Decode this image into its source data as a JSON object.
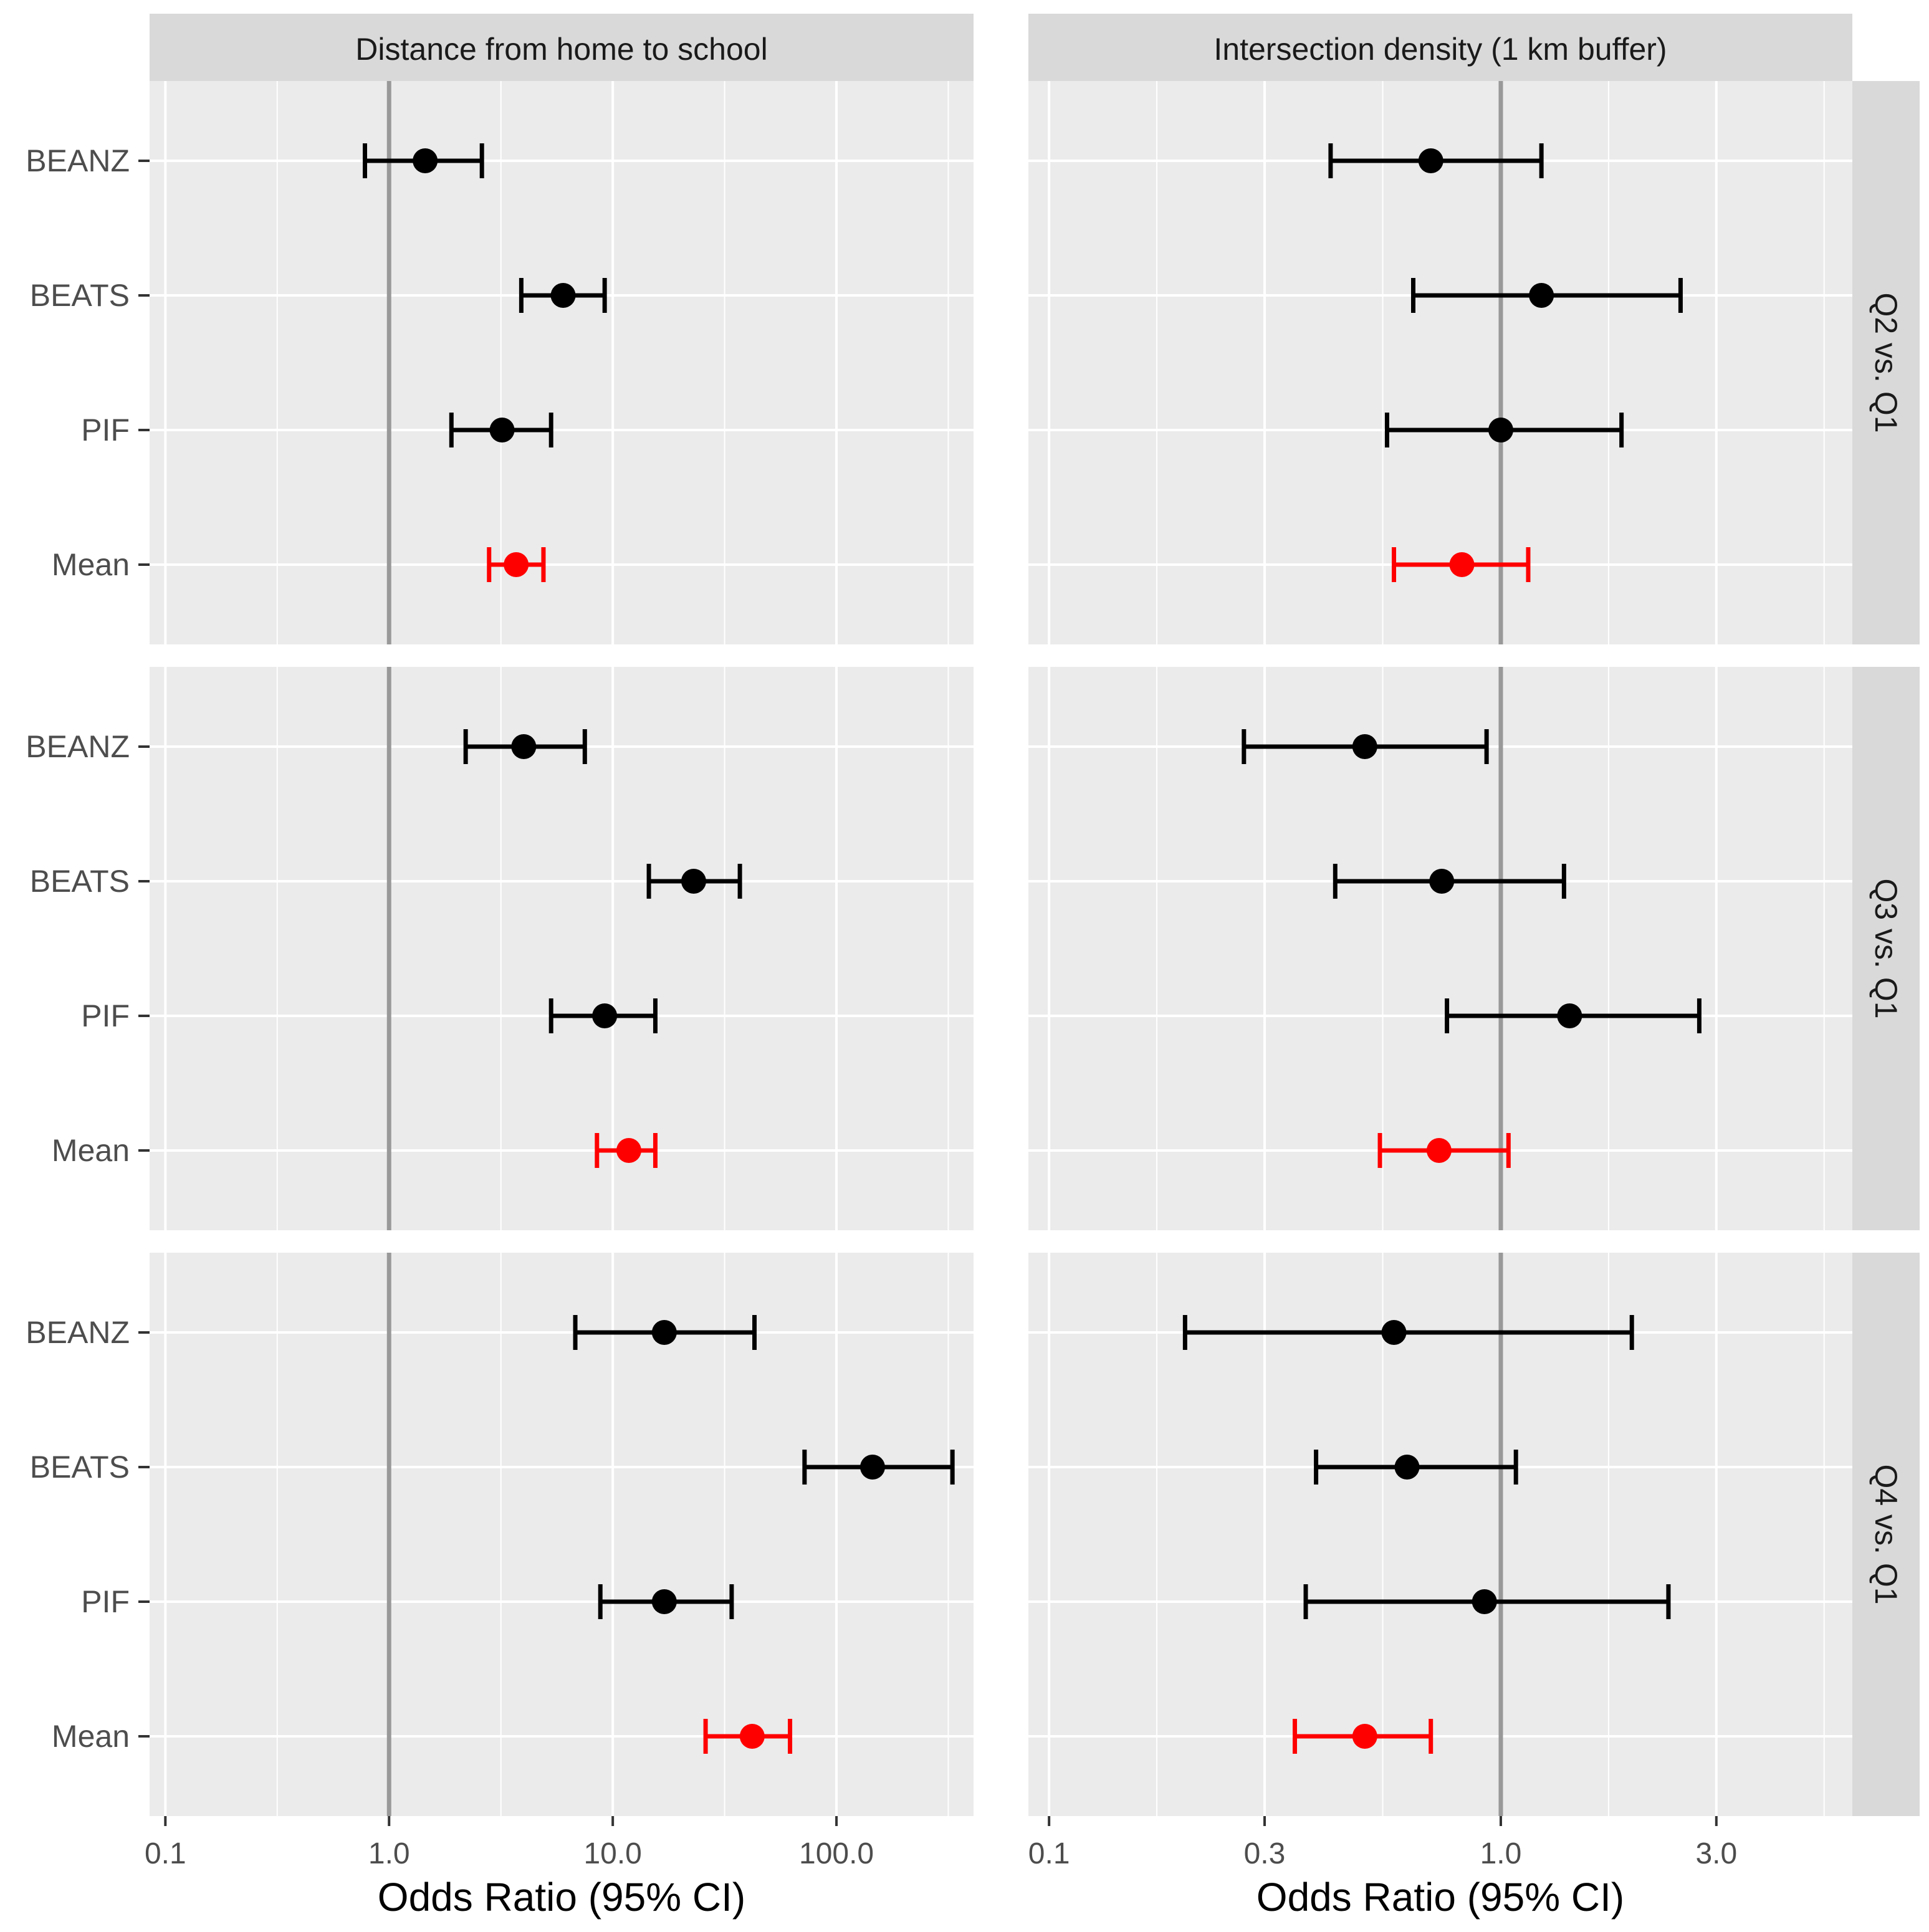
{
  "chart_data": {
    "type": "forest",
    "xlabel": "Odds Ratio (95% CI)",
    "scale": "log",
    "reference_line": 1.0,
    "colors": {
      "study": "#000000",
      "mean": "#ff0000",
      "panel_bg": "#ebebeb",
      "strip_bg": "#d9d9d9",
      "reference": "#999999"
    },
    "row_labels": [
      "BEANZ",
      "BEATS",
      "PIF",
      "Mean"
    ],
    "columns": [
      {
        "title": "Distance from home to school",
        "xlim": [
          0.085,
          410
        ],
        "ticks": [
          0.1,
          1.0,
          10.0,
          100.0
        ],
        "tick_labels": [
          "0.1",
          "1.0",
          "10.0",
          "100.0"
        ]
      },
      {
        "title": "Intersection density (1 km buffer)",
        "xlim": [
          0.09,
          6.0
        ],
        "ticks": [
          0.1,
          0.3,
          1.0,
          3.0
        ],
        "tick_labels": [
          "0.1",
          "0.3",
          "1.0",
          "3.0"
        ]
      }
    ],
    "rows": [
      "Q2 vs. Q1",
      "Q3 vs. Q1",
      "Q4 vs. Q1"
    ],
    "panels": [
      {
        "row": 0,
        "col": 0,
        "estimates": [
          {
            "label": "BEANZ",
            "or": 1.45,
            "lo": 0.78,
            "hi": 2.6
          },
          {
            "label": "BEATS",
            "or": 6.0,
            "lo": 3.9,
            "hi": 9.2
          },
          {
            "label": "PIF",
            "or": 3.2,
            "lo": 1.9,
            "hi": 5.3
          },
          {
            "label": "Mean",
            "or": 3.7,
            "lo": 2.8,
            "hi": 4.9
          }
        ]
      },
      {
        "row": 0,
        "col": 1,
        "estimates": [
          {
            "label": "BEANZ",
            "or": 0.7,
            "lo": 0.42,
            "hi": 1.23
          },
          {
            "label": "BEATS",
            "or": 1.23,
            "lo": 0.64,
            "hi": 2.5
          },
          {
            "label": "PIF",
            "or": 1.0,
            "lo": 0.56,
            "hi": 1.85
          },
          {
            "label": "Mean",
            "or": 0.82,
            "lo": 0.58,
            "hi": 1.15
          }
        ]
      },
      {
        "row": 1,
        "col": 0,
        "estimates": [
          {
            "label": "BEANZ",
            "or": 4.0,
            "lo": 2.2,
            "hi": 7.5
          },
          {
            "label": "BEATS",
            "or": 23.0,
            "lo": 14.5,
            "hi": 37.0
          },
          {
            "label": "PIF",
            "or": 9.2,
            "lo": 5.3,
            "hi": 15.5
          },
          {
            "label": "Mean",
            "or": 11.8,
            "lo": 8.5,
            "hi": 15.5
          }
        ]
      },
      {
        "row": 1,
        "col": 1,
        "estimates": [
          {
            "label": "BEANZ",
            "or": 0.5,
            "lo": 0.27,
            "hi": 0.93
          },
          {
            "label": "BEATS",
            "or": 0.74,
            "lo": 0.43,
            "hi": 1.38
          },
          {
            "label": "PIF",
            "or": 1.42,
            "lo": 0.76,
            "hi": 2.75
          },
          {
            "label": "Mean",
            "or": 0.73,
            "lo": 0.54,
            "hi": 1.04
          }
        ]
      },
      {
        "row": 2,
        "col": 0,
        "estimates": [
          {
            "label": "BEANZ",
            "or": 17.0,
            "lo": 6.8,
            "hi": 43.0
          },
          {
            "label": "BEATS",
            "or": 145.0,
            "lo": 72.0,
            "hi": 330.0
          },
          {
            "label": "PIF",
            "or": 17.0,
            "lo": 8.8,
            "hi": 34.0
          },
          {
            "label": "Mean",
            "or": 42.0,
            "lo": 26.0,
            "hi": 62.0
          }
        ]
      },
      {
        "row": 2,
        "col": 1,
        "estimates": [
          {
            "label": "BEANZ",
            "or": 0.58,
            "lo": 0.2,
            "hi": 1.95
          },
          {
            "label": "BEATS",
            "or": 0.62,
            "lo": 0.39,
            "hi": 1.08
          },
          {
            "label": "PIF",
            "or": 0.92,
            "lo": 0.37,
            "hi": 2.35
          },
          {
            "label": "Mean",
            "or": 0.5,
            "lo": 0.35,
            "hi": 0.7
          }
        ]
      }
    ]
  }
}
